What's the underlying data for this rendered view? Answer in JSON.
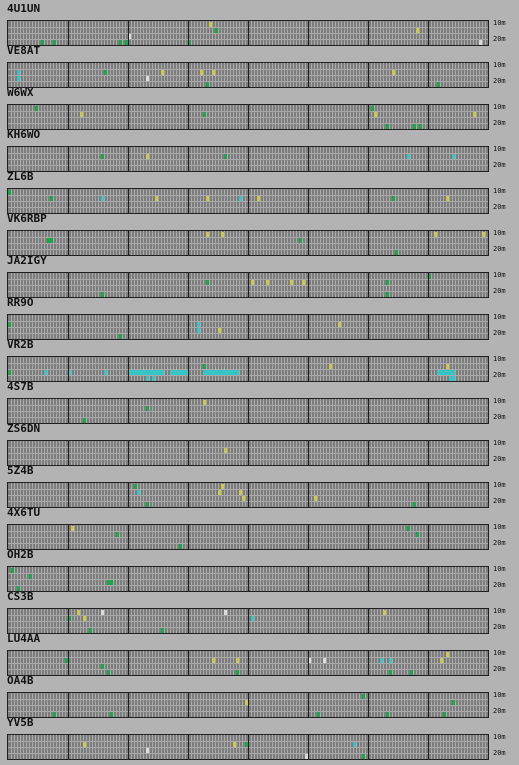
{
  "bands": {
    "upper": "10m",
    "lower": "20m"
  },
  "colors": {
    "background": "#b3b3b3",
    "cell": "#7d7d7d",
    "grid_line": "#a9a9a9",
    "frame": "#202020",
    "spot_green": "#16a84a",
    "spot_yellow": "#c9c94a",
    "spot_cyan": "#36c4c4",
    "spot_white": "#dcdcdc"
  },
  "stations": [
    {
      "callsign": "4U1UN",
      "spots": [
        {
          "r": 0,
          "c": 67,
          "k": "y"
        },
        {
          "r": 1,
          "c": 69,
          "k": "g"
        },
        {
          "r": 2,
          "c": 40,
          "k": "w"
        },
        {
          "r": 3,
          "c": 15,
          "k": "g"
        },
        {
          "r": 3,
          "c": 11,
          "k": "g"
        },
        {
          "r": 3,
          "c": 37,
          "k": "g"
        },
        {
          "r": 3,
          "c": 39,
          "k": "g"
        },
        {
          "r": 3,
          "c": 60,
          "k": "g"
        },
        {
          "r": 1,
          "c": 136,
          "k": "y"
        },
        {
          "r": 3,
          "c": 157,
          "k": "w"
        }
      ]
    },
    {
      "callsign": "VE8AT",
      "spots": [
        {
          "r": 1,
          "c": 3,
          "k": "c"
        },
        {
          "r": 2,
          "c": 3,
          "k": "c"
        },
        {
          "r": 1,
          "c": 32,
          "k": "g"
        },
        {
          "r": 1,
          "c": 51,
          "k": "y"
        },
        {
          "r": 1,
          "c": 64,
          "k": "y"
        },
        {
          "r": 1,
          "c": 68,
          "k": "y"
        },
        {
          "r": 2,
          "c": 46,
          "k": "w"
        },
        {
          "r": 3,
          "c": 66,
          "k": "g"
        },
        {
          "r": 1,
          "c": 128,
          "k": "y"
        },
        {
          "r": 3,
          "c": 143,
          "k": "g"
        }
      ]
    },
    {
      "callsign": "W6WX",
      "spots": [
        {
          "r": 0,
          "c": 9,
          "k": "g"
        },
        {
          "r": 1,
          "c": 24,
          "k": "y"
        },
        {
          "r": 1,
          "c": 65,
          "k": "g"
        },
        {
          "r": 0,
          "c": 121,
          "k": "g"
        },
        {
          "r": 1,
          "c": 122,
          "k": "y"
        },
        {
          "r": 3,
          "c": 126,
          "k": "g"
        },
        {
          "r": 3,
          "c": 135,
          "k": "g"
        },
        {
          "r": 3,
          "c": 137,
          "k": "g"
        },
        {
          "r": 1,
          "c": 155,
          "k": "y"
        }
      ]
    },
    {
      "callsign": "KH6WO",
      "spots": [
        {
          "r": 1,
          "c": 31,
          "k": "g"
        },
        {
          "r": 1,
          "c": 46,
          "k": "y"
        },
        {
          "r": 1,
          "c": 72,
          "k": "g"
        },
        {
          "r": 1,
          "c": 133,
          "k": "c"
        },
        {
          "r": 1,
          "c": 148,
          "k": "c"
        }
      ]
    },
    {
      "callsign": "ZL6B",
      "spots": [
        {
          "r": 0,
          "c": 0,
          "k": "g"
        },
        {
          "r": 1,
          "c": 14,
          "k": "g"
        },
        {
          "r": 1,
          "c": 31,
          "k": "c"
        },
        {
          "r": 1,
          "c": 49,
          "k": "y"
        },
        {
          "r": 1,
          "c": 66,
          "k": "y"
        },
        {
          "r": 1,
          "c": 77,
          "k": "c"
        },
        {
          "r": 1,
          "c": 83,
          "k": "y"
        },
        {
          "r": 1,
          "c": 146,
          "k": "y"
        },
        {
          "r": 1,
          "c": 128,
          "k": "g"
        }
      ]
    },
    {
      "callsign": "VK6RBP",
      "spots": [
        {
          "r": 1,
          "c": 13,
          "k": "g"
        },
        {
          "r": 1,
          "c": 14,
          "k": "g"
        },
        {
          "r": 0,
          "c": 66,
          "k": "y"
        },
        {
          "r": 0,
          "c": 71,
          "k": "y"
        },
        {
          "r": 1,
          "c": 97,
          "k": "g"
        },
        {
          "r": 0,
          "c": 142,
          "k": "y"
        },
        {
          "r": 0,
          "c": 158,
          "k": "y"
        },
        {
          "r": 3,
          "c": 129,
          "k": "g"
        }
      ]
    },
    {
      "callsign": "JA2IGY",
      "spots": [
        {
          "r": 1,
          "c": 66,
          "k": "g"
        },
        {
          "r": 1,
          "c": 81,
          "k": "y"
        },
        {
          "r": 1,
          "c": 86,
          "k": "y"
        },
        {
          "r": 1,
          "c": 94,
          "k": "y"
        },
        {
          "r": 1,
          "c": 98,
          "k": "y"
        },
        {
          "r": 1,
          "c": 126,
          "k": "g"
        },
        {
          "r": 0,
          "c": 140,
          "k": "g"
        },
        {
          "r": 3,
          "c": 31,
          "k": "g"
        },
        {
          "r": 3,
          "c": 126,
          "k": "g"
        }
      ]
    },
    {
      "callsign": "RR9O",
      "spots": [
        {
          "r": 1,
          "c": 0,
          "k": "g"
        },
        {
          "r": 1,
          "c": 63,
          "k": "c"
        },
        {
          "r": 2,
          "c": 63,
          "k": "c"
        },
        {
          "r": 2,
          "c": 70,
          "k": "y"
        },
        {
          "r": 1,
          "c": 110,
          "k": "y"
        },
        {
          "r": 3,
          "c": 37,
          "k": "g"
        }
      ]
    },
    {
      "callsign": "VR2B",
      "spots": [
        {
          "r": 2,
          "c": 0,
          "k": "g"
        },
        {
          "r": 2,
          "c": 12,
          "k": "c"
        },
        {
          "r": 2,
          "c": 20,
          "k": "c"
        },
        {
          "r": 2,
          "c": 32,
          "k": "c"
        },
        {
          "r": 2,
          "c": 40,
          "k": "c"
        },
        {
          "r": 2,
          "c": 41,
          "k": "c"
        },
        {
          "r": 2,
          "c": 42,
          "k": "c"
        },
        {
          "r": 2,
          "c": 43,
          "k": "c"
        },
        {
          "r": 2,
          "c": 44,
          "k": "c"
        },
        {
          "r": 2,
          "c": 45,
          "k": "c"
        },
        {
          "r": 2,
          "c": 46,
          "k": "c"
        },
        {
          "r": 2,
          "c": 47,
          "k": "c"
        },
        {
          "r": 2,
          "c": 48,
          "k": "c"
        },
        {
          "r": 2,
          "c": 49,
          "k": "c"
        },
        {
          "r": 2,
          "c": 50,
          "k": "c"
        },
        {
          "r": 2,
          "c": 51,
          "k": "c"
        },
        {
          "r": 2,
          "c": 54,
          "k": "c"
        },
        {
          "r": 2,
          "c": 55,
          "k": "c"
        },
        {
          "r": 2,
          "c": 56,
          "k": "c"
        },
        {
          "r": 2,
          "c": 57,
          "k": "c"
        },
        {
          "r": 2,
          "c": 58,
          "k": "c"
        },
        {
          "r": 2,
          "c": 59,
          "k": "c"
        },
        {
          "r": 2,
          "c": 65,
          "k": "c"
        },
        {
          "r": 2,
          "c": 66,
          "k": "c"
        },
        {
          "r": 2,
          "c": 67,
          "k": "c"
        },
        {
          "r": 2,
          "c": 68,
          "k": "c"
        },
        {
          "r": 2,
          "c": 69,
          "k": "c"
        },
        {
          "r": 2,
          "c": 70,
          "k": "c"
        },
        {
          "r": 2,
          "c": 71,
          "k": "c"
        },
        {
          "r": 2,
          "c": 72,
          "k": "c"
        },
        {
          "r": 2,
          "c": 73,
          "k": "c"
        },
        {
          "r": 2,
          "c": 74,
          "k": "c"
        },
        {
          "r": 2,
          "c": 75,
          "k": "c"
        },
        {
          "r": 2,
          "c": 76,
          "k": "c"
        },
        {
          "r": 3,
          "c": 46,
          "k": "c"
        },
        {
          "r": 3,
          "c": 48,
          "k": "c"
        },
        {
          "r": 1,
          "c": 65,
          "k": "g"
        },
        {
          "r": 1,
          "c": 107,
          "k": "y"
        },
        {
          "r": 2,
          "c": 143,
          "k": "c"
        },
        {
          "r": 2,
          "c": 144,
          "k": "c"
        },
        {
          "r": 2,
          "c": 145,
          "k": "c"
        },
        {
          "r": 2,
          "c": 146,
          "k": "c"
        },
        {
          "r": 2,
          "c": 147,
          "k": "c"
        },
        {
          "r": 2,
          "c": 148,
          "k": "c"
        },
        {
          "r": 1,
          "c": 146,
          "k": "y"
        },
        {
          "r": 3,
          "c": 147,
          "k": "c"
        },
        {
          "r": 3,
          "c": 148,
          "k": "c"
        }
      ]
    },
    {
      "callsign": "4S7B",
      "spots": [
        {
          "r": 1,
          "c": 46,
          "k": "g"
        },
        {
          "r": 0,
          "c": 65,
          "k": "y"
        },
        {
          "r": 3,
          "c": 25,
          "k": "g"
        }
      ]
    },
    {
      "callsign": "ZS6DN",
      "spots": [
        {
          "r": 1,
          "c": 72,
          "k": "y"
        }
      ]
    },
    {
      "callsign": "5Z4B",
      "spots": [
        {
          "r": 0,
          "c": 42,
          "k": "g"
        },
        {
          "r": 1,
          "c": 43,
          "k": "c"
        },
        {
          "r": 1,
          "c": 70,
          "k": "y"
        },
        {
          "r": 0,
          "c": 71,
          "k": "y"
        },
        {
          "r": 1,
          "c": 77,
          "k": "y"
        },
        {
          "r": 2,
          "c": 78,
          "k": "y"
        },
        {
          "r": 2,
          "c": 102,
          "k": "y"
        },
        {
          "r": 3,
          "c": 46,
          "k": "g"
        },
        {
          "r": 3,
          "c": 135,
          "k": "g"
        }
      ]
    },
    {
      "callsign": "4X6TU",
      "spots": [
        {
          "r": 0,
          "c": 21,
          "k": "y"
        },
        {
          "r": 1,
          "c": 36,
          "k": "g"
        },
        {
          "r": 0,
          "c": 133,
          "k": "g"
        },
        {
          "r": 1,
          "c": 136,
          "k": "g"
        },
        {
          "r": 3,
          "c": 57,
          "k": "g"
        }
      ]
    },
    {
      "callsign": "OH2B",
      "spots": [
        {
          "r": 0,
          "c": 1,
          "k": "g"
        },
        {
          "r": 1,
          "c": 7,
          "k": "g"
        },
        {
          "r": 2,
          "c": 33,
          "k": "g"
        },
        {
          "r": 2,
          "c": 34,
          "k": "g"
        },
        {
          "r": 3,
          "c": 3,
          "k": "g"
        }
      ]
    },
    {
      "callsign": "CS3B",
      "spots": [
        {
          "r": 0,
          "c": 23,
          "k": "y"
        },
        {
          "r": 0,
          "c": 31,
          "k": "w"
        },
        {
          "r": 1,
          "c": 20,
          "k": "g"
        },
        {
          "r": 1,
          "c": 25,
          "k": "y"
        },
        {
          "r": 0,
          "c": 72,
          "k": "w"
        },
        {
          "r": 0,
          "c": 125,
          "k": "y"
        },
        {
          "r": 3,
          "c": 27,
          "k": "g"
        },
        {
          "r": 3,
          "c": 51,
          "k": "g"
        },
        {
          "r": 1,
          "c": 81,
          "k": "c"
        }
      ]
    },
    {
      "callsign": "LU4AA",
      "spots": [
        {
          "r": 1,
          "c": 19,
          "k": "g"
        },
        {
          "r": 2,
          "c": 31,
          "k": "g"
        },
        {
          "r": 1,
          "c": 68,
          "k": "y"
        },
        {
          "r": 1,
          "c": 76,
          "k": "y"
        },
        {
          "r": 1,
          "c": 100,
          "k": "w"
        },
        {
          "r": 1,
          "c": 105,
          "k": "w"
        },
        {
          "r": 1,
          "c": 124,
          "k": "c"
        },
        {
          "r": 1,
          "c": 127,
          "k": "c"
        },
        {
          "r": 1,
          "c": 144,
          "k": "y"
        },
        {
          "r": 0,
          "c": 146,
          "k": "y"
        },
        {
          "r": 3,
          "c": 33,
          "k": "g"
        },
        {
          "r": 3,
          "c": 76,
          "k": "g"
        },
        {
          "r": 3,
          "c": 127,
          "k": "g"
        },
        {
          "r": 3,
          "c": 134,
          "k": "g"
        }
      ]
    },
    {
      "callsign": "OA4B",
      "spots": [
        {
          "r": 1,
          "c": 79,
          "k": "y"
        },
        {
          "r": 0,
          "c": 118,
          "k": "g"
        },
        {
          "r": 1,
          "c": 148,
          "k": "g"
        },
        {
          "r": 3,
          "c": 15,
          "k": "g"
        },
        {
          "r": 3,
          "c": 34,
          "k": "g"
        },
        {
          "r": 3,
          "c": 103,
          "k": "g"
        },
        {
          "r": 3,
          "c": 126,
          "k": "g"
        },
        {
          "r": 3,
          "c": 145,
          "k": "g"
        }
      ]
    },
    {
      "callsign": "YV5B",
      "spots": [
        {
          "r": 1,
          "c": 25,
          "k": "y"
        },
        {
          "r": 2,
          "c": 46,
          "k": "w"
        },
        {
          "r": 1,
          "c": 75,
          "k": "y"
        },
        {
          "r": 1,
          "c": 79,
          "k": "g"
        },
        {
          "r": 1,
          "c": 115,
          "k": "c"
        },
        {
          "r": 3,
          "c": 99,
          "k": "w"
        },
        {
          "r": 3,
          "c": 118,
          "k": "g"
        }
      ]
    }
  ]
}
